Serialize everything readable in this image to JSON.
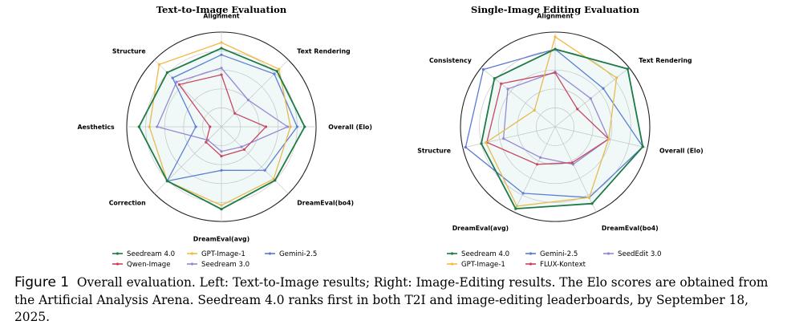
{
  "chart_data": [
    {
      "type": "radar",
      "title": "Text-to-Image Evaluation",
      "axes": [
        "Alignment",
        "Text Rendering",
        "Overall (Elo)",
        "DreamEval(bo4)",
        "DreamEval(avg)",
        "Correction",
        "Aesthetics",
        "Structure"
      ],
      "rlim": [
        0,
        1
      ],
      "grid_rings": [
        0.2,
        0.4,
        0.6,
        0.8,
        1.0
      ],
      "series": [
        {
          "name": "Seedream 4.0",
          "color": "#1e7a46",
          "values": [
            0.83,
            0.83,
            0.88,
            0.8,
            0.87,
            0.81,
            0.87,
            0.81
          ]
        },
        {
          "name": "GPT-Image-1",
          "color": "#f5b942",
          "values": [
            0.89,
            0.86,
            0.73,
            0.78,
            0.83,
            0.81,
            0.76,
            0.93
          ]
        },
        {
          "name": "Gemini-2.5",
          "color": "#5b78d6",
          "values": [
            0.76,
            0.79,
            0.8,
            0.65,
            0.46,
            0.81,
            0.27,
            0.73
          ]
        },
        {
          "name": "Qwen-Image",
          "color": "#d03a5a",
          "values": [
            0.55,
            0.2,
            0.47,
            0.34,
            0.31,
            0.23,
            0.12,
            0.63
          ]
        },
        {
          "name": "Seedream 3.0",
          "color": "#9a83d6",
          "values": [
            0.62,
            0.4,
            0.7,
            0.3,
            0.26,
            0.2,
            0.68,
            0.67
          ]
        }
      ],
      "legend": [
        "Seedream 4.0",
        "GPT-Image-1",
        "Gemini-2.5",
        "Qwen-Image",
        "Seedream 3.0"
      ]
    },
    {
      "type": "radar",
      "title": "Single-Image Editing Evaluation",
      "axes": [
        "Alignment",
        "Text Rendering",
        "Overall (Elo)",
        "DreamEval(bo4)",
        "DreamEval(avg)",
        "Structure",
        "Consistency"
      ],
      "rlim": [
        0,
        1
      ],
      "grid_rings": [
        0.2,
        0.4,
        0.6,
        0.8,
        1.0
      ],
      "series": [
        {
          "name": "Seedream 4.0",
          "color": "#1e7a46",
          "values": [
            0.82,
            0.98,
            0.95,
            0.9,
            0.96,
            0.8,
            0.82
          ]
        },
        {
          "name": "GPT-Image-1",
          "color": "#f5b942",
          "values": [
            0.95,
            0.83,
            0.58,
            0.83,
            0.93,
            0.75,
            0.28
          ]
        },
        {
          "name": "Gemini-2.5",
          "color": "#5b78d6",
          "values": [
            0.82,
            0.65,
            0.95,
            0.83,
            0.78,
            0.97,
            0.97
          ]
        },
        {
          "name": "FLUX-Kontext",
          "color": "#d03a5a",
          "values": [
            0.57,
            0.3,
            0.58,
            0.42,
            0.44,
            0.74,
            0.73
          ]
        },
        {
          "name": "SeedEdit 3.0",
          "color": "#9a83d6",
          "values": [
            0.58,
            0.48,
            0.58,
            0.44,
            0.36,
            0.56,
            0.64
          ]
        }
      ],
      "legend": [
        "Seedream 4.0",
        "Gemini-2.5",
        "SeedEdit 3.0",
        "GPT-Image-1",
        "FLUX-Kontext"
      ]
    }
  ],
  "caption": {
    "label": "Figure 1",
    "text": "Overall evaluation. Left: Text-to-Image results; Right: Image-Editing results. The Elo scores are obtained from the Artificial Analysis Arena. Seedream 4.0 ranks first in both T2I and image-editing leaderboards, by September 18, 2025."
  }
}
